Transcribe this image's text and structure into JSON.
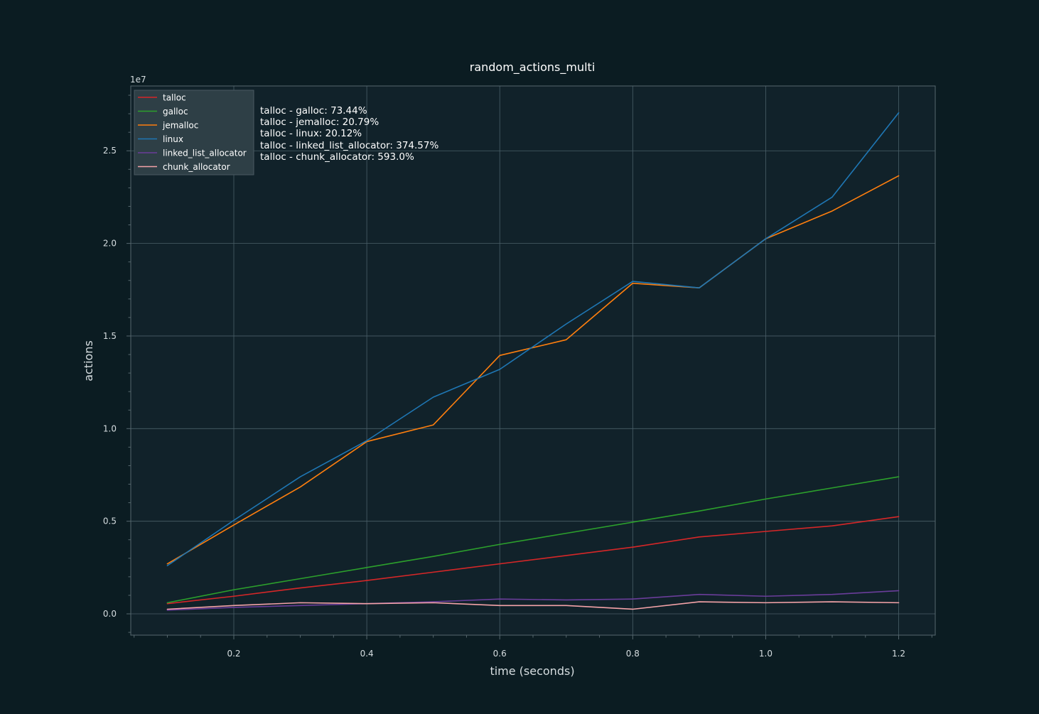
{
  "chart_data": {
    "type": "line",
    "title": "random_actions_multi",
    "xlabel": "time (seconds)",
    "ylabel": "actions",
    "y_offset_label": "1e7",
    "xlim": [
      0.045,
      1.255
    ],
    "ylim": [
      -1150000,
      28500000
    ],
    "x_ticks": [
      0.2,
      0.4,
      0.6,
      0.8,
      1.0,
      1.2
    ],
    "x_tick_labels": [
      "0.2",
      "0.4",
      "0.6",
      "0.8",
      "1.0",
      "1.2"
    ],
    "y_ticks": [
      0,
      5000000,
      10000000,
      15000000,
      20000000,
      25000000
    ],
    "y_tick_labels": [
      "0.0",
      "0.5",
      "1.0",
      "1.5",
      "2.0",
      "2.5"
    ],
    "grid": true,
    "legend_position": "top-left",
    "x": [
      0.1,
      0.2,
      0.3,
      0.4,
      0.5,
      0.6,
      0.7,
      0.8,
      0.9,
      1.0,
      1.1,
      1.2
    ],
    "series": [
      {
        "name": "talloc",
        "color": "#d62728",
        "values": [
          550000,
          950000,
          1400000,
          1800000,
          2250000,
          2700000,
          3150000,
          3600000,
          4150000,
          4450000,
          4750000,
          5250000
        ]
      },
      {
        "name": "galloc",
        "color": "#2ca02c",
        "values": [
          600000,
          1300000,
          1900000,
          2500000,
          3100000,
          3750000,
          4350000,
          4950000,
          5550000,
          6200000,
          6800000,
          7400000
        ]
      },
      {
        "name": "jemalloc",
        "color": "#ff7f0e",
        "values": [
          2700000,
          4800000,
          6850000,
          9300000,
          10200000,
          13950000,
          14800000,
          17850000,
          17600000,
          20250000,
          21750000,
          23650000
        ]
      },
      {
        "name": "linux",
        "color": "#1f77b4",
        "values": [
          2600000,
          5050000,
          7400000,
          9350000,
          11700000,
          13200000,
          15650000,
          17950000,
          17600000,
          20250000,
          22500000,
          27050000
        ]
      },
      {
        "name": "linked_list_allocator",
        "color": "#6a3d9a",
        "values": [
          200000,
          350000,
          450000,
          550000,
          650000,
          800000,
          750000,
          800000,
          1050000,
          950000,
          1050000,
          1250000
        ]
      },
      {
        "name": "chunk_allocator",
        "color": "#f4a3a8",
        "values": [
          250000,
          450000,
          600000,
          550000,
          600000,
          450000,
          450000,
          250000,
          650000,
          600000,
          650000,
          600000
        ]
      }
    ],
    "annotations": [
      "talloc - galloc: 73.44%",
      "talloc - jemalloc: 20.79%",
      "talloc - linux: 20.12%",
      "talloc - linked_list_allocator: 374.57%",
      "talloc - chunk_allocator: 593.0%"
    ]
  },
  "colors": {
    "background": "#0b1c22",
    "plot_background": "#11222a",
    "grid": "#4a5f68",
    "spine": "#56676e"
  }
}
